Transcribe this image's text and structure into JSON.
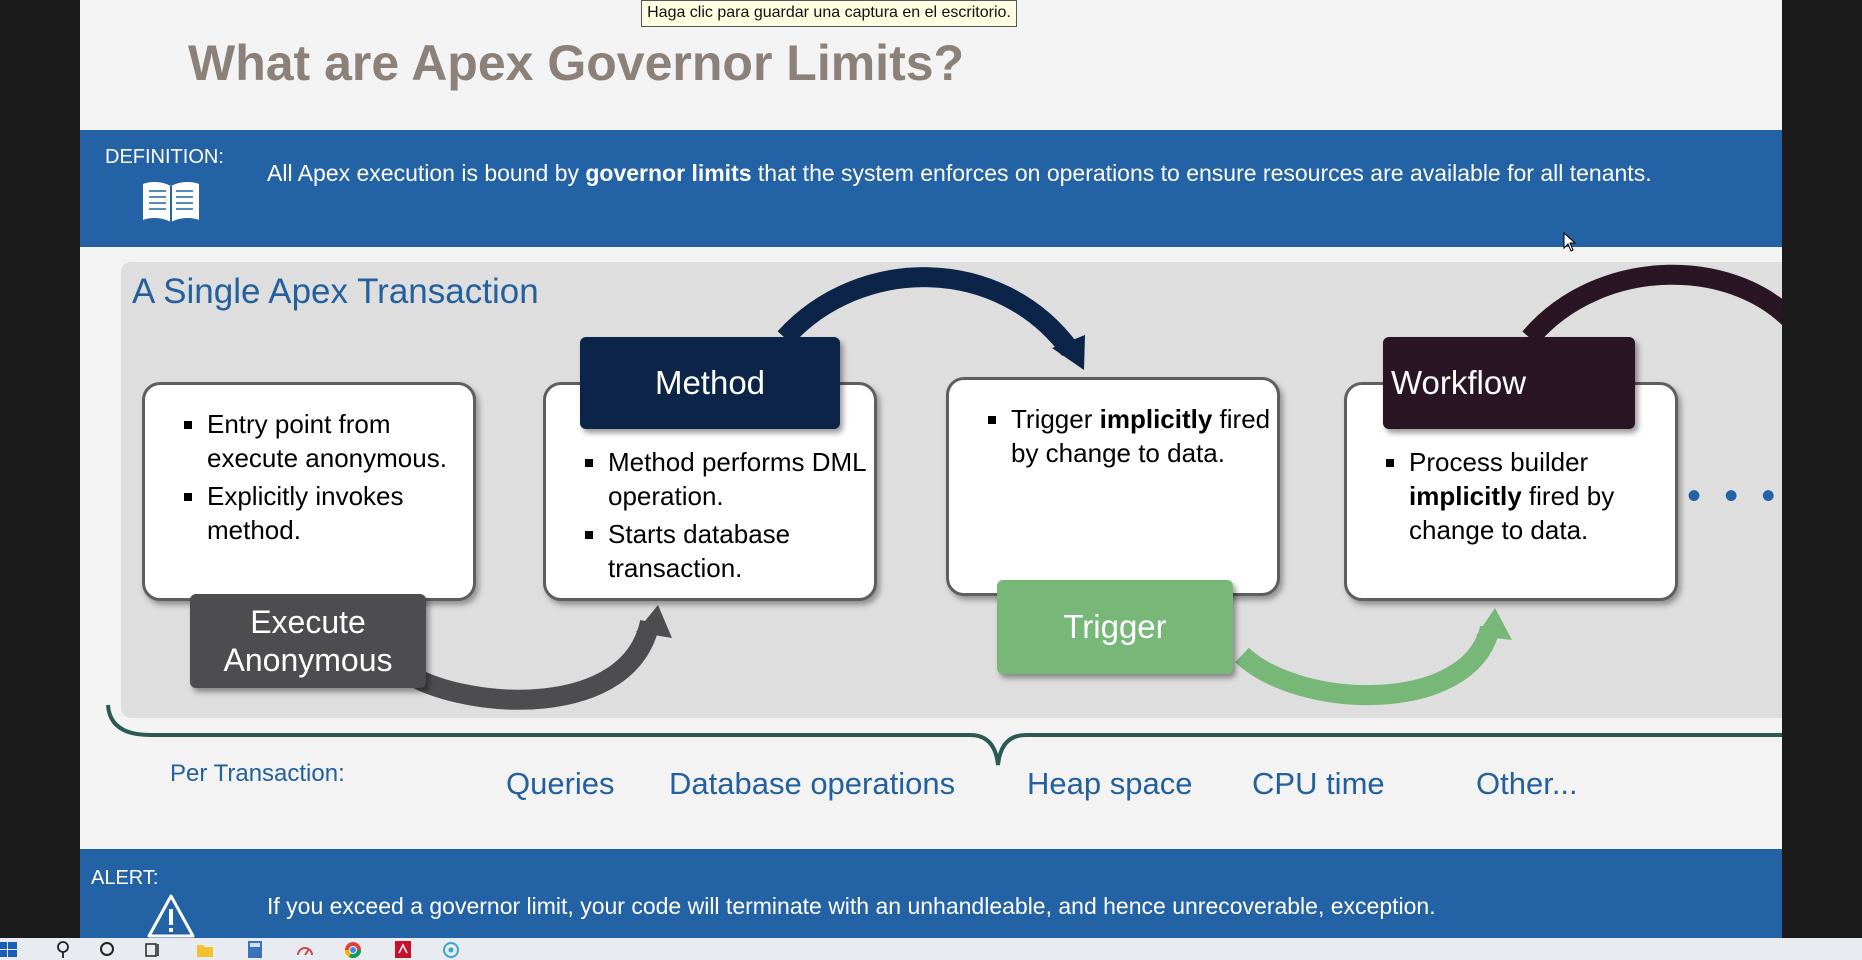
{
  "screenshot_tooltip": "Haga clic para guardar una captura en el escritorio.",
  "slide": {
    "title": "What are Apex Governor Limits?",
    "definition": {
      "label": "DEFINITION:",
      "text_before": "All Apex execution is bound by ",
      "text_bold": "governor limits",
      "text_after": " that the system enforces on operations to ensure resources are available for all tenants."
    },
    "panel": {
      "title": "A Single Apex Transaction",
      "steps": [
        {
          "label": "Execute Anonymous",
          "label_color": "#4d4d4f",
          "bullets": [
            "Entry point from execute anonymous.",
            "Explicitly invokes method."
          ]
        },
        {
          "label": "Method",
          "label_color": "#0b2447",
          "bullets": [
            "Method performs DML operation.",
            "Starts database transaction."
          ]
        },
        {
          "label": "Trigger",
          "label_color": "#77b879",
          "bullets_rich": [
            [
              "Trigger ",
              "implicitly",
              " fired by change to data."
            ]
          ]
        },
        {
          "label": "Workflow",
          "label_color": "#2a1525",
          "bullets_rich": [
            [
              "Process builder ",
              "implicitly",
              " fired by change to data."
            ]
          ]
        }
      ],
      "more": "• • •"
    },
    "per_transaction": {
      "label": "Per Transaction:",
      "items": [
        "Queries",
        "Database operations",
        "Heap space",
        "CPU time",
        "Other..."
      ]
    },
    "alert": {
      "label": "ALERT:",
      "text": "If you exceed a governor limit, your code will terminate with an unhandleable, and hence unrecoverable, exception."
    }
  },
  "taskbar": {
    "icons": [
      "windows-start-icon",
      "search-icon",
      "cortana-icon",
      "task-view-icon",
      "file-explorer-icon",
      "calculator-icon",
      "speedometer-icon",
      "chrome-icon",
      "acrobat-icon",
      "app-icon"
    ]
  }
}
